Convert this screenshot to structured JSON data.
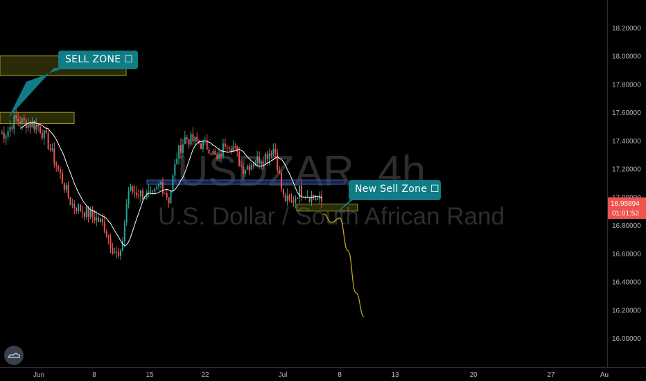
{
  "watermark": {
    "symbol": "USDZAR, 4h",
    "description": "U.S. Dollar / South African Rand"
  },
  "callouts": [
    {
      "name": "sell-zone-callout",
      "text": "SELL ZONE ☐"
    },
    {
      "name": "new-sell-zone-callout",
      "text": "New Sell Zone ☐"
    }
  ],
  "price_axis": {
    "ticks": [
      "18.20000",
      "18.00000",
      "17.80000",
      "17.60000",
      "17.40000",
      "17.20000",
      "17.00000",
      "16.80000",
      "16.60000",
      "16.40000",
      "16.20000",
      "16.00000"
    ],
    "last_price": "16.95894",
    "countdown": "01:01:52"
  },
  "time_axis": {
    "ticks": [
      "Jun",
      "8",
      "15",
      "22",
      "Jul",
      "8",
      "13",
      "20",
      "27",
      "Au"
    ]
  },
  "colors": {
    "up": "#26a69a",
    "down": "#ef5350",
    "sell_zone": "#7a7a1a",
    "resistance": "#2a3f7a",
    "callout": "#0f7c86",
    "projection": "#c8b420",
    "ma": "#ffffff"
  },
  "chart_data": {
    "type": "candlestick",
    "title": "USDZAR, 4h",
    "subtitle": "U.S. Dollar / South African Rand",
    "ylim": [
      15.89,
      18.3
    ],
    "close_path": [
      [
        "2020-05-28",
        17.45
      ],
      [
        "2020-05-29",
        17.55
      ],
      [
        "2020-06-01",
        17.5
      ],
      [
        "2020-06-02",
        17.4
      ],
      [
        "2020-06-04",
        17.1
      ],
      [
        "2020-06-05",
        16.95
      ],
      [
        "2020-06-08",
        16.85
      ],
      [
        "2020-06-09",
        16.8
      ],
      [
        "2020-06-10",
        16.65
      ],
      [
        "2020-06-11",
        16.55
      ],
      [
        "2020-06-12",
        17.05
      ],
      [
        "2020-06-15",
        17.0
      ],
      [
        "2020-06-16",
        17.1
      ],
      [
        "2020-06-17",
        16.98
      ],
      [
        "2020-06-18",
        17.3
      ],
      [
        "2020-06-19",
        17.42
      ],
      [
        "2020-06-22",
        17.35
      ],
      [
        "2020-06-23",
        17.25
      ],
      [
        "2020-06-24",
        17.4
      ],
      [
        "2020-06-25",
        17.35
      ],
      [
        "2020-06-26",
        17.2
      ],
      [
        "2020-06-29",
        17.3
      ],
      [
        "2020-06-30",
        17.35
      ],
      [
        "2020-07-01",
        17.0
      ],
      [
        "2020-07-02",
        16.95
      ],
      [
        "2020-07-03",
        17.05
      ],
      [
        "2020-07-06",
        16.96
      ]
    ],
    "zones": [
      {
        "label": "SELL ZONE",
        "top": 18.0,
        "bottom": 17.86
      },
      {
        "label": "SELL ZONE",
        "top": 17.6,
        "bottom": 17.52
      },
      {
        "label": "resistance",
        "top": 17.12,
        "bottom": 17.09
      },
      {
        "label": "New Sell Zone",
        "top": 16.95,
        "bottom": 16.9
      }
    ],
    "projection": [
      [
        "2020-07-06",
        16.88
      ],
      [
        "2020-07-07",
        16.82
      ],
      [
        "2020-07-08",
        16.85
      ],
      [
        "2020-07-09",
        16.62
      ],
      [
        "2020-07-10",
        16.32
      ],
      [
        "2020-07-11",
        16.15
      ]
    ],
    "last_price": 16.95894
  }
}
